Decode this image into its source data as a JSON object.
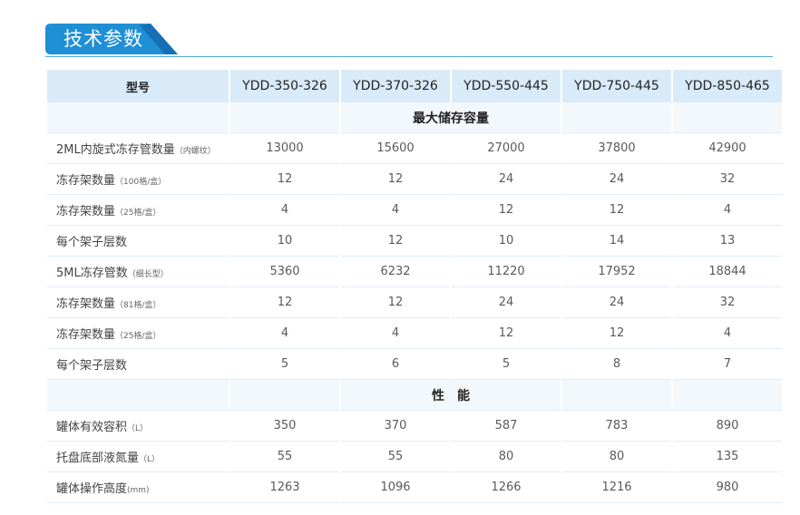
{
  "heading": {
    "title": "技术参数",
    "accent_color": "#1f8fd6"
  },
  "table": {
    "header": {
      "label": "型号",
      "models": [
        "YDD-350-326",
        "YDD-370-326",
        "YDD-550-445",
        "YDD-750-445",
        "YDD-850-465"
      ]
    },
    "sections": [
      {
        "title": "最大储存容量",
        "rows": [
          {
            "label": "2ML内旋式冻存管数量",
            "note": "（内螺纹）",
            "values": [
              "13000",
              "15600",
              "27000",
              "37800",
              "42900"
            ]
          },
          {
            "label": "冻存架数量",
            "note": "（100格/盒）",
            "values": [
              "12",
              "12",
              "24",
              "24",
              "32"
            ]
          },
          {
            "label": "冻存架数量",
            "note": "（25格/盒）",
            "values": [
              "4",
              "4",
              "12",
              "12",
              "4"
            ]
          },
          {
            "label": "每个架子层数",
            "note": "",
            "values": [
              "10",
              "12",
              "10",
              "14",
              "13"
            ]
          },
          {
            "label": " 5ML冻存管数",
            "note": "（细长型）",
            "values": [
              "5360",
              "6232",
              "11220",
              "17952",
              "18844"
            ]
          },
          {
            "label": "冻存架数量",
            "note": "（81格/盒）",
            "values": [
              "12",
              "12",
              "24",
              "24",
              "32"
            ]
          },
          {
            "label": "冻存架数量",
            "note": "（25格/盒）",
            "values": [
              "4",
              "4",
              "12",
              "12",
              "4"
            ]
          },
          {
            "label": "每个架子层数",
            "note": "",
            "values": [
              "5",
              "6",
              "5",
              "8",
              "7"
            ]
          }
        ]
      },
      {
        "title": "性　能",
        "rows": [
          {
            "label": "罐体有效容积",
            "note": "（L）",
            "values": [
              "350",
              "370",
              "587",
              "783",
              "890"
            ]
          },
          {
            "label": "托盘底部液氮量",
            "note": "（L）",
            "values": [
              "55",
              "55",
              "80",
              "80",
              "135"
            ]
          },
          {
            "label": "罐体操作高度",
            "note": "(mm)",
            "values": [
              "1263",
              "1096",
              "1266",
              "1216",
              "980"
            ]
          }
        ]
      }
    ]
  }
}
